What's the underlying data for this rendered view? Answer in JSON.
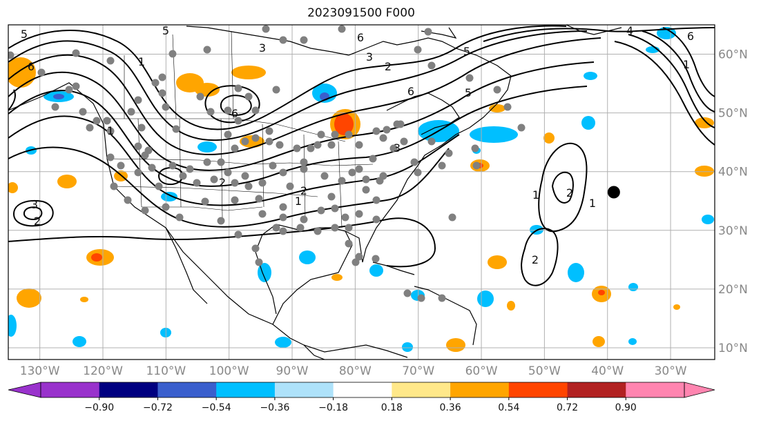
{
  "title": "2023091500 F000",
  "map": {
    "lat_labels": [
      "60°N",
      "50°N",
      "40°N",
      "30°N",
      "20°N",
      "10°N"
    ],
    "lat_values": [
      60,
      50,
      40,
      30,
      20,
      10
    ],
    "lon_labels": [
      "130°W",
      "120°W",
      "110°W",
      "100°W",
      "90°W",
      "80°W",
      "70°W",
      "60°W",
      "50°W",
      "40°W",
      "30°W"
    ],
    "lon_values": [
      -130,
      -120,
      -110,
      -100,
      -90,
      -80,
      -70,
      -60,
      -50,
      -40,
      -30
    ],
    "lon_range": [
      -135,
      -23
    ],
    "lat_range": [
      8,
      65
    ],
    "gridlines": true,
    "contour_labels": [
      "5",
      "6",
      "1",
      "3",
      "5",
      "6",
      "3",
      "2",
      "6",
      "5",
      "4",
      "6",
      "5",
      "6",
      "1",
      "2",
      "3",
      "1",
      "2",
      "2",
      "3",
      "1",
      "2",
      "1",
      "2",
      "1"
    ],
    "storm_marker": {
      "lon": -39,
      "lat": 36.5,
      "color": "#000000"
    },
    "station_color": "#808080"
  },
  "colorbar": {
    "ticks": [
      "−0.90",
      "−0.72",
      "−0.54",
      "−0.36",
      "−0.18",
      "0.18",
      "0.36",
      "0.54",
      "0.72",
      "0.90"
    ],
    "colors": [
      "#9932CC",
      "#000080",
      "#3A5FCD",
      "#00BFFF",
      "#AEE2FA",
      "#FFFFFF",
      "#FFE88A",
      "#FFA500",
      "#FF4500",
      "#B22222",
      "#FF85B0"
    ],
    "extend_min_color": "#9932CC",
    "extend_max_color": "#FF85B0"
  }
}
